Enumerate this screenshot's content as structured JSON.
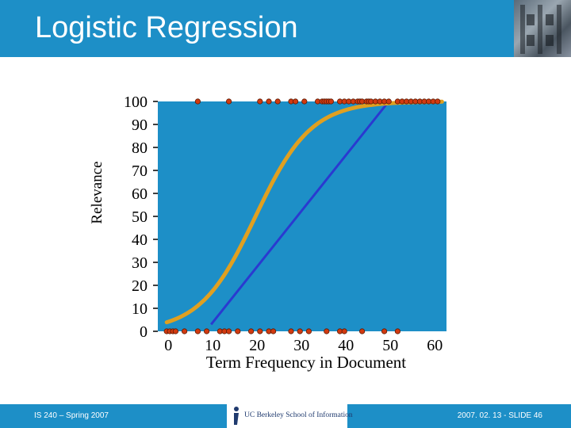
{
  "slide": {
    "title": "Logistic Regression",
    "footer_left": "IS 240 – Spring 2007",
    "footer_right": "2007. 02. 13 - SLIDE 46",
    "logo_text": "UC Berkeley School of Information"
  },
  "colors": {
    "header": "#1d8fc7",
    "plot_bg": "#1d8fc7",
    "logistic_curve": "#e0a020",
    "linear_line": "#2a3ad0",
    "points": "#d23a10"
  },
  "chart_data": {
    "type": "scatter",
    "xlabel": "Term Frequency in Document",
    "ylabel": "Relevance",
    "xlim": [
      -2,
      63
    ],
    "ylim": [
      0,
      100
    ],
    "x_ticks": [
      0,
      10,
      20,
      30,
      40,
      50,
      60
    ],
    "y_ticks": [
      0,
      10,
      20,
      30,
      40,
      50,
      60,
      70,
      80,
      90,
      100
    ],
    "grid": false,
    "series": [
      {
        "y": 100,
        "x": [
          7,
          14,
          21,
          23,
          25,
          28,
          29,
          31,
          34,
          35,
          35.5,
          36,
          36.5,
          37,
          39,
          40,
          41,
          42,
          43,
          43.5,
          44,
          45,
          45.5,
          46,
          47,
          48,
          49,
          50,
          52,
          53,
          54,
          55,
          56,
          57,
          58,
          59,
          60,
          61
        ]
      },
      {
        "y": 0,
        "x": [
          0,
          0.7,
          1.4,
          2,
          4,
          7,
          9,
          12,
          13,
          14,
          16,
          19,
          21,
          23,
          24,
          28,
          30,
          32,
          36,
          39,
          40,
          44,
          49,
          52
        ]
      }
    ],
    "lines": [
      {
        "type": "linear",
        "points": [
          [
            10,
            3
          ],
          [
            50,
            100
          ]
        ]
      },
      {
        "type": "logistic",
        "x0": 20,
        "k": 0.16,
        "x_range": [
          0,
          62
        ]
      }
    ]
  }
}
